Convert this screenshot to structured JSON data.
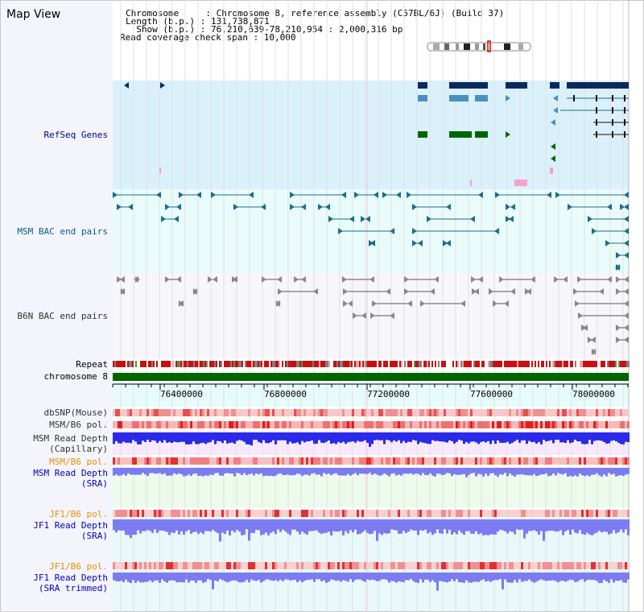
{
  "title": "Map View",
  "header": {
    "line1": "Chromosome     : Chromosome 8, reference assembly (C57BL/6J) (Build 37)",
    "line2": "Length (b.p.) : 131,738,871",
    "line3": "  Show (b.p.) : 76,210,639-78,210,954 : 2,000,316 bp",
    "line4": "Read coverage check span : 10,000"
  },
  "tracks": {
    "refseq": "RefSeq Genes",
    "msm_bac": "MSM BAC end pairs",
    "b6n_bac": "B6N BAC end pairs",
    "repeat": "Repeat",
    "chromosome": "chromosome 8",
    "dbsnp": "dbSNP(Mouse)",
    "msm_b6_pol": "MSM/B6 pol.",
    "msm_depth_cap_1": "MSM Read Depth",
    "msm_depth_cap_2": "(Capillary)",
    "msm_b6_pol_2": "MSM/B6 pol.",
    "msm_depth_sra_1": "MSM Read Depth",
    "msm_depth_sra_2": "(SRA)",
    "jf1_b6_pol": "JF1/B6 pol.",
    "jf1_depth_sra_1": "JF1 Read Depth",
    "jf1_depth_sra_2": "(SRA)",
    "jf1_b6_pol_2": "JF1/B6 pol.",
    "jf1_depth_trim_1": "JF1 Read Depth",
    "jf1_depth_trim_2": "(SRA trimmed)"
  },
  "axis": {
    "ticks": [
      "76400000",
      "76800000",
      "77200000",
      "77600000",
      "78000000"
    ],
    "tick_values": [
      76400000,
      76800000,
      77200000,
      77600000,
      78000000
    ],
    "range": [
      76210639,
      78210954
    ]
  },
  "colors": {
    "refseq_bg": "#daf0fb",
    "bac_bg": "#e9fbfb",
    "b6n_bg": "#f6f6fb",
    "gene_navy": "#0a2a5e",
    "gene_blue": "#4a90c0",
    "gene_green": "#006600",
    "bac_teal": "#1a6e8a",
    "chromosome": "#006600",
    "depth_blue": "#2a2ae8",
    "depth_light": "#7b7bf2"
  }
}
